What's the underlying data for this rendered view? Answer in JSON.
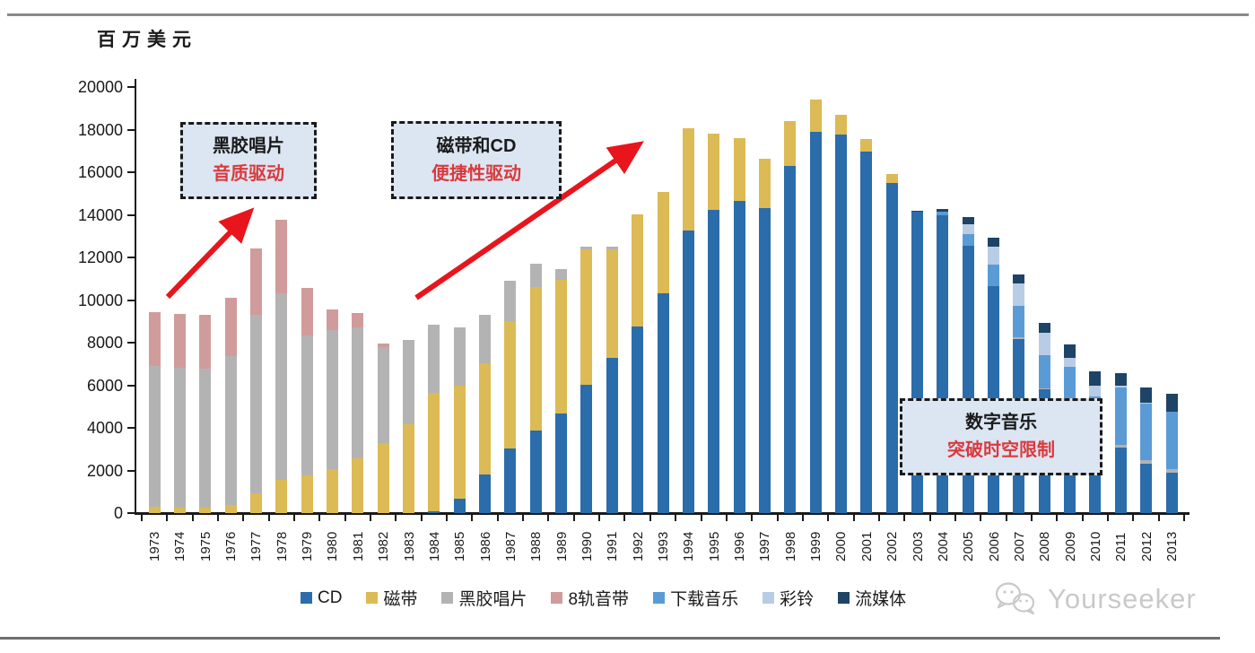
{
  "page": {
    "unit_label": "百万美元",
    "watermark": "Yourseeker"
  },
  "chart_data": {
    "type": "bar",
    "stacked": true,
    "title": "",
    "ylabel": "百万美元",
    "xlabel": "",
    "ylim": [
      0,
      20000
    ],
    "y_ticks": [
      0,
      2000,
      4000,
      6000,
      8000,
      10000,
      12000,
      14000,
      16000,
      18000,
      20000
    ],
    "grid": false,
    "legend_position": "bottom",
    "categories": [
      1973,
      1974,
      1975,
      1976,
      1977,
      1978,
      1979,
      1980,
      1981,
      1982,
      1983,
      1984,
      1985,
      1986,
      1987,
      1988,
      1989,
      1990,
      1991,
      1992,
      1993,
      1994,
      1995,
      1996,
      1997,
      1998,
      1999,
      2000,
      2001,
      2002,
      2003,
      2004,
      2005,
      2006,
      2007,
      2008,
      2009,
      2010,
      2011,
      2012,
      2013
    ],
    "series": [
      {
        "name": "CD",
        "color": "#2b6cab",
        "values": [
          0,
          0,
          0,
          0,
          0,
          0,
          0,
          0,
          0,
          0,
          0,
          100,
          660,
          1800,
          3020,
          3890,
          4670,
          6030,
          7300,
          8740,
          10320,
          13260,
          14240,
          14660,
          14310,
          16300,
          17890,
          17750,
          16950,
          15480,
          14150,
          14000,
          12560,
          10670,
          8180,
          5800,
          4900,
          3700,
          3090,
          2320,
          1900
        ]
      },
      {
        "name": "磁带",
        "color": "#dcba55",
        "values": [
          300,
          260,
          260,
          370,
          930,
          1570,
          1790,
          2050,
          2590,
          3300,
          4170,
          5550,
          5330,
          5220,
          5990,
          6710,
          6280,
          6330,
          5100,
          5290,
          4770,
          4790,
          3580,
          2950,
          2320,
          2110,
          1540,
          940,
          590,
          450,
          0,
          0,
          0,
          0,
          0,
          0,
          0,
          0,
          0,
          0,
          0
        ]
      },
      {
        "name": "黑胶唱片",
        "color": "#b3b3b3",
        "values": [
          6590,
          6560,
          6540,
          7010,
          8360,
          8740,
          6560,
          6540,
          6110,
          4490,
          3970,
          3190,
          2740,
          2290,
          1900,
          1090,
          490,
          130,
          100,
          0,
          0,
          0,
          0,
          0,
          0,
          0,
          0,
          0,
          0,
          0,
          0,
          0,
          0,
          0,
          60,
          60,
          70,
          80,
          100,
          150,
          150
        ]
      },
      {
        "name": "8轨音带",
        "color": "#d09c9b",
        "values": [
          2560,
          2530,
          2500,
          2720,
          3130,
          3470,
          2200,
          950,
          700,
          180,
          0,
          0,
          0,
          0,
          0,
          0,
          0,
          0,
          0,
          0,
          0,
          0,
          0,
          0,
          0,
          0,
          0,
          0,
          0,
          0,
          0,
          0,
          0,
          0,
          0,
          0,
          0,
          0,
          0,
          0,
          0
        ]
      },
      {
        "name": "下载音乐",
        "color": "#5b9bd5",
        "values": [
          0,
          0,
          0,
          0,
          0,
          0,
          0,
          0,
          0,
          0,
          0,
          0,
          0,
          0,
          0,
          0,
          0,
          0,
          0,
          0,
          0,
          0,
          0,
          0,
          0,
          0,
          0,
          0,
          0,
          0,
          0,
          150,
          550,
          990,
          1500,
          1550,
          1900,
          1680,
          2700,
          2650,
          2700
        ]
      },
      {
        "name": "彩铃",
        "color": "#b9cce6",
        "values": [
          0,
          0,
          0,
          0,
          0,
          0,
          0,
          0,
          0,
          0,
          0,
          0,
          0,
          0,
          0,
          0,
          0,
          0,
          0,
          0,
          0,
          0,
          0,
          0,
          0,
          0,
          0,
          0,
          0,
          0,
          0,
          0,
          450,
          840,
          1050,
          1050,
          420,
          500,
          80,
          70,
          0
        ]
      },
      {
        "name": "流媒体",
        "color": "#1d4466",
        "values": [
          0,
          0,
          0,
          0,
          0,
          0,
          0,
          0,
          0,
          0,
          0,
          0,
          0,
          0,
          0,
          0,
          0,
          0,
          0,
          0,
          0,
          0,
          0,
          0,
          0,
          0,
          0,
          0,
          0,
          0,
          50,
          120,
          330,
          420,
          420,
          450,
          640,
          700,
          600,
          700,
          850
        ]
      }
    ]
  },
  "annotations": [
    {
      "line1": "黑胶唱片",
      "line2": "音质驱动"
    },
    {
      "line1": "磁带和CD",
      "line2": "便捷性驱动"
    },
    {
      "line1": "数字音乐",
      "line2": "突破时空限制"
    }
  ],
  "arrow_color": "#e8151d"
}
